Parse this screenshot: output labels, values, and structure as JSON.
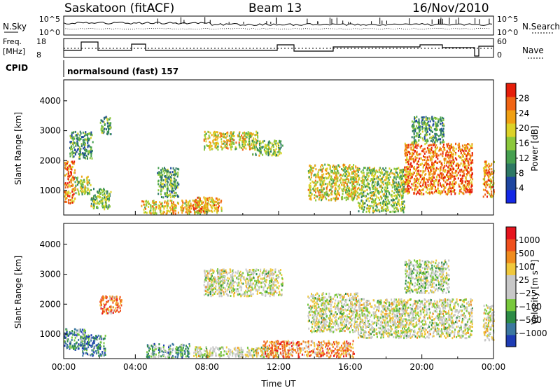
{
  "header": {
    "station": "Saskatoon (fitACF)",
    "beam": "Beam 13",
    "date": "16/Nov/2010"
  },
  "noise_panel": {
    "left_label": "N.Sky",
    "left_ticks": [
      "10^5",
      "10^0"
    ],
    "right_label": "N.Search",
    "right_ticks": [
      "10^5",
      "10^0"
    ]
  },
  "freq_panel": {
    "left_label_1": "Freq.",
    "left_label_2": "[MHz]",
    "left_ticks": [
      "18",
      "8"
    ],
    "right_label": "Nave",
    "right_ticks": [
      "60",
      "0"
    ]
  },
  "cpid": {
    "label": "CPID",
    "value": "normalsound (fast) 157"
  },
  "chart_data": [
    {
      "type": "heatmap",
      "name": "power",
      "ylabel": "Slant Range [km]",
      "ylim": [
        180,
        4700
      ],
      "yticks": [
        "1000",
        "2000",
        "3000",
        "4000"
      ],
      "xlim_hours": [
        0,
        24
      ],
      "colorbar_label": "Power [dB]",
      "colorbar_ticks": [
        "28",
        "24",
        "20",
        "16",
        "12",
        "8",
        "4"
      ],
      "colors": [
        "#1428e6",
        "#1e46a0",
        "#2d7864",
        "#46a050",
        "#8cc83c",
        "#dcd228",
        "#f0a014",
        "#f06414",
        "#e61e0a"
      ],
      "blobs": [
        {
          "t0": 0.0,
          "t1": 0.6,
          "r0": 600,
          "r1": 2000,
          "level": 0.8
        },
        {
          "t0": 0.6,
          "t1": 1.5,
          "r0": 900,
          "r1": 1500,
          "level": 0.5
        },
        {
          "t0": 1.5,
          "t1": 2.6,
          "r0": 400,
          "r1": 1100,
          "level": 0.45
        },
        {
          "t0": 0.3,
          "t1": 1.6,
          "r0": 2100,
          "r1": 3000,
          "level": 0.35
        },
        {
          "t0": 2.0,
          "t1": 2.6,
          "r0": 2900,
          "r1": 3500,
          "level": 0.4
        },
        {
          "t0": 5.2,
          "t1": 6.4,
          "r0": 800,
          "r1": 1800,
          "level": 0.4
        },
        {
          "t0": 4.3,
          "t1": 8.0,
          "r0": 250,
          "r1": 700,
          "level": 0.65
        },
        {
          "t0": 7.2,
          "t1": 8.8,
          "r0": 280,
          "r1": 800,
          "level": 0.7
        },
        {
          "t0": 7.8,
          "t1": 10.8,
          "r0": 2400,
          "r1": 3000,
          "level": 0.6
        },
        {
          "t0": 10.5,
          "t1": 12.2,
          "r0": 2200,
          "r1": 2700,
          "level": 0.45
        },
        {
          "t0": 13.6,
          "t1": 16.4,
          "r0": 700,
          "r1": 1900,
          "level": 0.6
        },
        {
          "t0": 16.4,
          "t1": 19.0,
          "r0": 300,
          "r1": 1800,
          "level": 0.5
        },
        {
          "t0": 19.0,
          "t1": 22.8,
          "r0": 900,
          "r1": 2600,
          "level": 0.8
        },
        {
          "t0": 19.4,
          "t1": 21.2,
          "r0": 2600,
          "r1": 3500,
          "level": 0.35
        },
        {
          "t0": 23.4,
          "t1": 24.0,
          "r0": 800,
          "r1": 2000,
          "level": 0.75
        }
      ]
    },
    {
      "type": "heatmap",
      "name": "velocity",
      "ylabel": "Slant Range [km]",
      "ylim": [
        180,
        4700
      ],
      "yticks": [
        "1000",
        "2000",
        "3000",
        "4000"
      ],
      "xlim_hours": [
        0,
        24
      ],
      "xticks": [
        "00:00",
        "04:00",
        "08:00",
        "12:00",
        "16:00",
        "20:00",
        "00:00"
      ],
      "xlabel": "Time UT",
      "colorbar_label": "Velocity [m s⁻¹]",
      "colorbar_ticks": [
        "1000",
        "500",
        "100",
        "25",
        "−25",
        "−100",
        "−500",
        "−1000"
      ],
      "colors": [
        "#1e3cb4",
        "#3c78a0",
        "#2d8c46",
        "#78c83c",
        "#c8c8c8",
        "#c8c8c8",
        "#f0c83c",
        "#f08c1e",
        "#f0501e",
        "#e6141e"
      ],
      "blobs": [
        {
          "t0": 0.0,
          "t1": 1.2,
          "r0": 500,
          "r1": 1200,
          "level": 0.25
        },
        {
          "t0": 1.0,
          "t1": 2.3,
          "r0": 300,
          "r1": 1000,
          "level": 0.2
        },
        {
          "t0": 2.0,
          "t1": 3.2,
          "r0": 1700,
          "r1": 2300,
          "level": 0.75
        },
        {
          "t0": 4.6,
          "t1": 7.0,
          "r0": 250,
          "r1": 700,
          "level": 0.3
        },
        {
          "t0": 7.2,
          "t1": 12.0,
          "r0": 250,
          "r1": 600,
          "level": 0.5
        },
        {
          "t0": 7.8,
          "t1": 12.2,
          "r0": 2300,
          "r1": 3200,
          "level": 0.5
        },
        {
          "t0": 11.0,
          "t1": 16.2,
          "r0": 250,
          "r1": 800,
          "level": 0.75
        },
        {
          "t0": 13.6,
          "t1": 16.4,
          "r0": 1100,
          "r1": 2400,
          "level": 0.5
        },
        {
          "t0": 16.4,
          "t1": 22.8,
          "r0": 900,
          "r1": 2200,
          "level": 0.5
        },
        {
          "t0": 19.0,
          "t1": 21.5,
          "r0": 2400,
          "r1": 3500,
          "level": 0.45
        },
        {
          "t0": 23.4,
          "t1": 24.0,
          "r0": 800,
          "r1": 2000,
          "level": 0.55
        }
      ]
    }
  ]
}
